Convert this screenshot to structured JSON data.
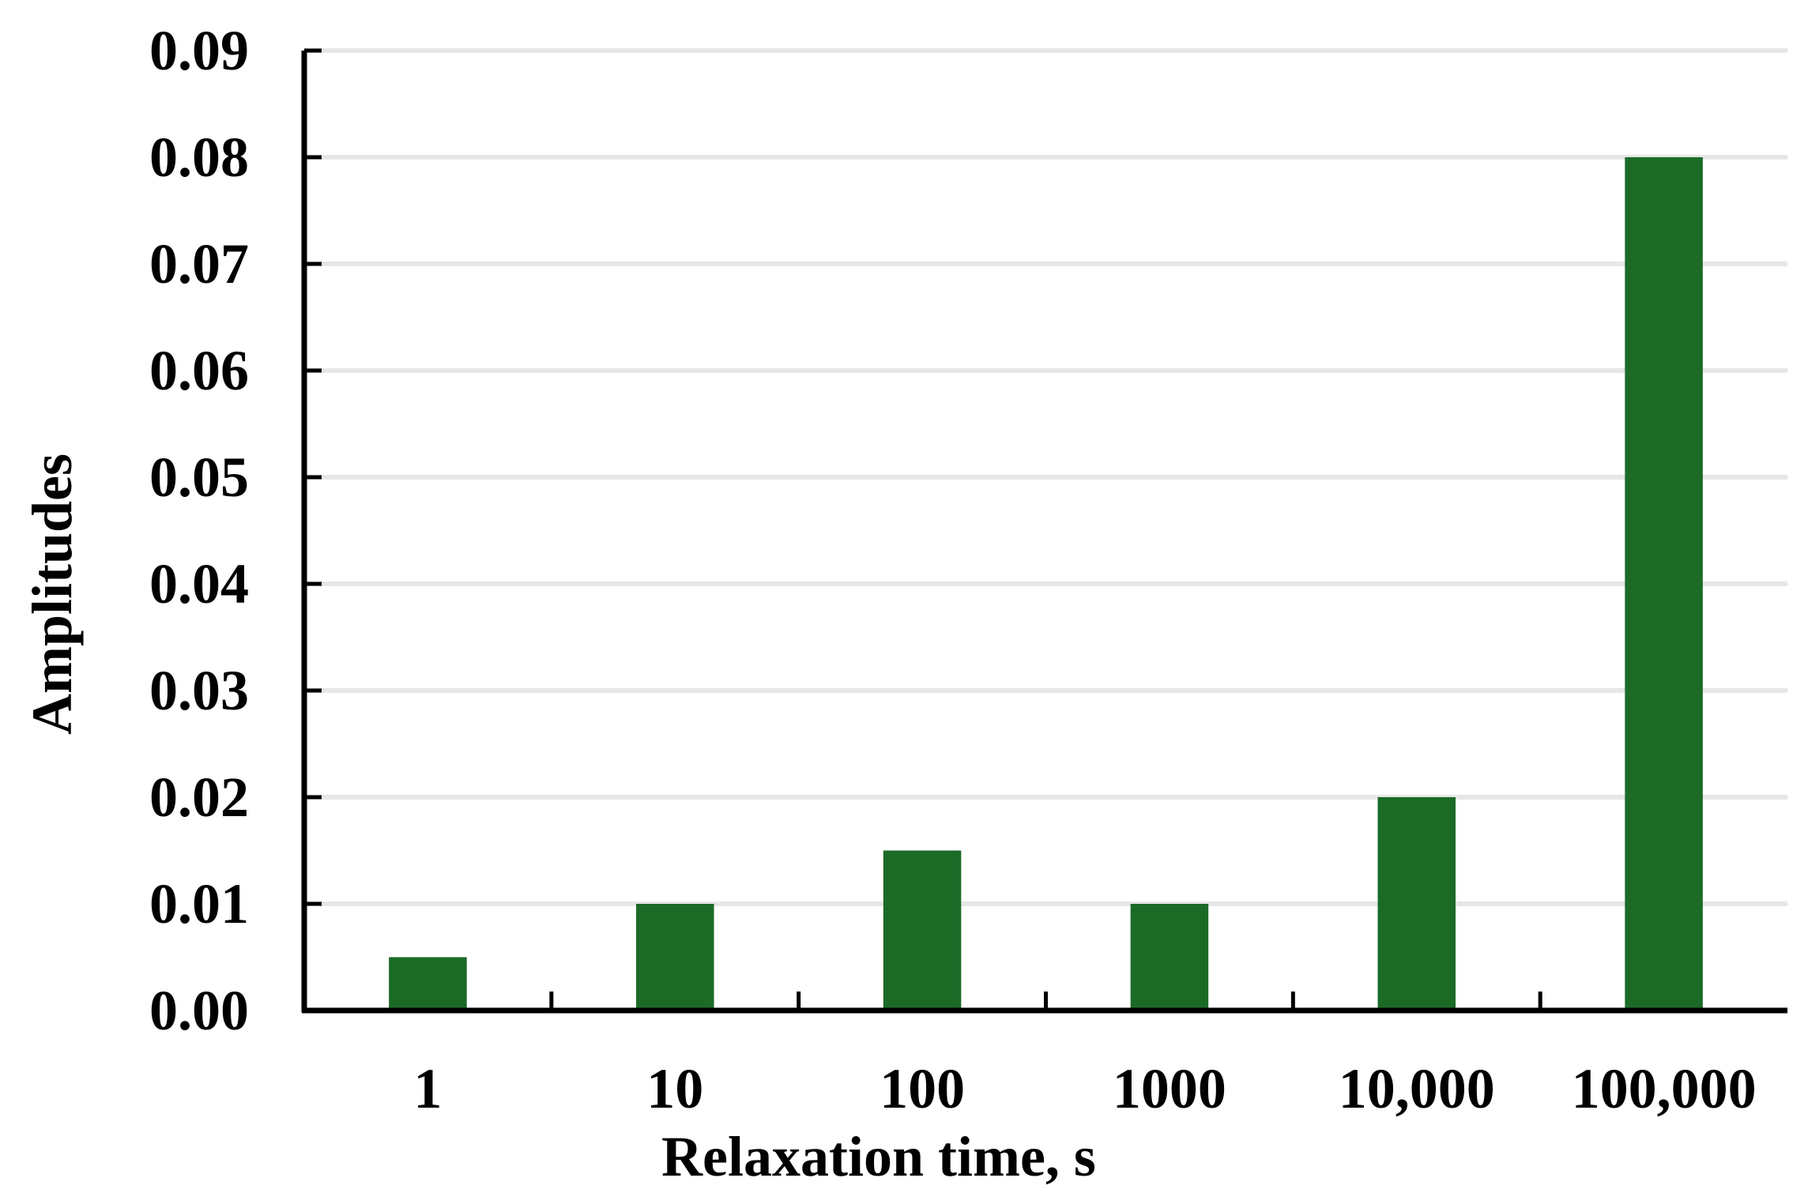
{
  "chart_data": {
    "type": "bar",
    "categories": [
      "1",
      "10",
      "100",
      "1000",
      "10,000",
      "100,000"
    ],
    "values": [
      0.005,
      0.01,
      0.015,
      0.01,
      0.02,
      0.08
    ],
    "xlabel": "Relaxation time, s",
    "ylabel": "Amplitudes",
    "ylim": [
      0,
      0.09
    ],
    "yticks": [
      "0.00",
      "0.01",
      "0.02",
      "0.03",
      "0.04",
      "0.05",
      "0.06",
      "0.07",
      "0.08",
      "0.09"
    ],
    "grid": true,
    "legend": "none",
    "colors": {
      "bar": "#1b6b27",
      "grid": "#e6e6e6",
      "axis": "#000000"
    }
  }
}
